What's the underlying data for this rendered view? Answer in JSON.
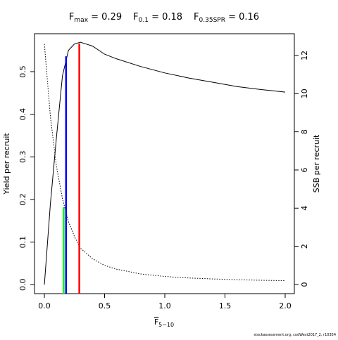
{
  "chart_data": {
    "type": "line",
    "title_parts": [
      {
        "base": "F",
        "sub": "max",
        "text": " = 0.29"
      },
      {
        "base": "F",
        "sub": "0.1",
        "text": " = 0.18"
      },
      {
        "base": "F",
        "sub": "0.35SPR",
        "text": " = 0.16"
      }
    ],
    "x_label": {
      "base": "F",
      "sub": "5−10"
    },
    "y_label": "Yield per recruit",
    "y2_label": "SSB per recruit",
    "footer": "stockassessment.org, codWest2017_2, r10354",
    "x": [
      0,
      0.05,
      0.1,
      0.15,
      0.2,
      0.25,
      0.3,
      0.4,
      0.5,
      0.6,
      0.8,
      1.0,
      1.2,
      1.4,
      1.6,
      1.8,
      2.0
    ],
    "series": [
      {
        "color": "#000000",
        "dash": "none",
        "values": [
          0,
          0.19,
          0.345,
          0.49,
          0.55,
          0.565,
          0.569,
          0.56,
          0.541,
          0.53,
          0.512,
          0.497,
          0.485,
          0.475,
          0.465,
          0.458,
          0.452
        ]
      },
      {
        "color": "#000000",
        "dash": "1.5,2",
        "axis": "y2",
        "values": [
          12.6,
          8.8,
          6.2,
          4.5,
          3.3,
          2.5,
          1.9,
          1.35,
          1.0,
          0.8,
          0.55,
          0.42,
          0.34,
          0.29,
          0.25,
          0.22,
          0.2
        ]
      }
    ],
    "ref_lines": [
      {
        "x": 0.29,
        "y": 0.566,
        "color": "#ff0000"
      },
      {
        "x": 0.18,
        "y": 0.536,
        "color": "#0000ff"
      },
      {
        "x": 0.16,
        "y": 0.182,
        "color": "#00ff00"
      }
    ],
    "xlim": [
      -0.082,
      2.076
    ],
    "ylim": [
      -0.021,
      0.589
    ],
    "y2lim": [
      -0.48,
      13.14
    ],
    "xticks": [
      {
        "value": 0,
        "label": "0.0"
      },
      0.5,
      {
        "value": 1,
        "label": "1.0"
      },
      1.5,
      {
        "value": 2,
        "label": "2.0"
      }
    ],
    "yticks": [
      {
        "value": 0,
        "label": "0.0"
      },
      0.1,
      0.2,
      0.3,
      0.4,
      0.5
    ],
    "y2ticks": [
      0,
      2,
      4,
      6,
      8,
      10,
      12
    ]
  }
}
